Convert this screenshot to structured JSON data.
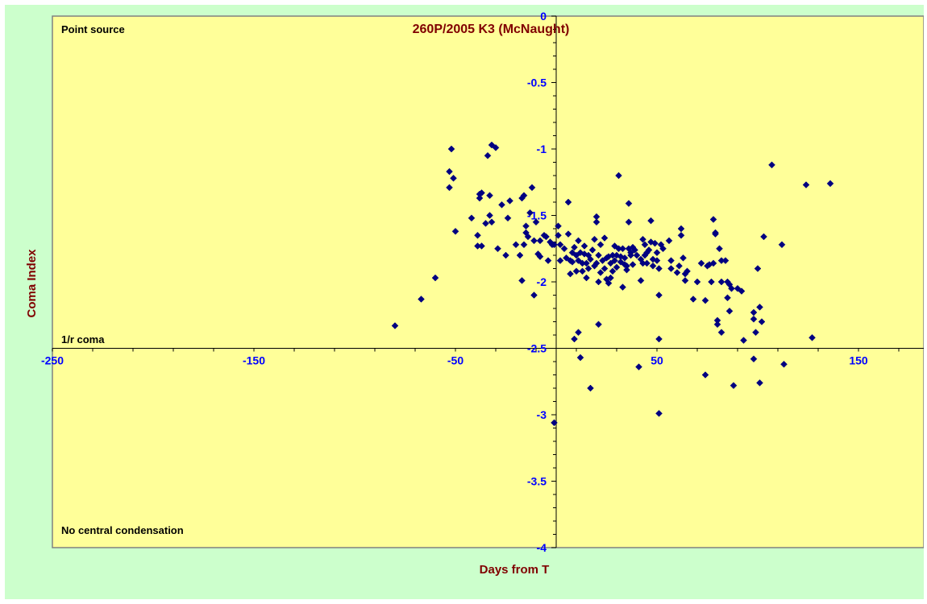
{
  "chart_data": {
    "type": "scatter",
    "title": "260P/2005 K3 (McNaught)",
    "xlabel": "Days from  T",
    "ylabel": "Coma Index",
    "xlim": [
      -250,
      200
    ],
    "ylim": [
      -4,
      0
    ],
    "x_ticks": [
      -250,
      -150,
      -50,
      50,
      150
    ],
    "y_ticks": [
      0,
      -0.5,
      -1,
      -1.5,
      -2,
      -2.5,
      -3,
      -3.5,
      -4
    ],
    "x_tick_labels": [
      "-250",
      "-150",
      "-50",
      "50",
      "150"
    ],
    "y_tick_labels": [
      "0",
      "-0.5",
      "-1",
      "-1.5",
      "-2",
      "-2.5",
      "-3",
      "-3.5",
      "-4"
    ],
    "grid": false,
    "annotations": {
      "top": "Point source",
      "middle": "1/r coma",
      "bottom": "No central condensation"
    },
    "colors": {
      "plot_background": "#ffff99",
      "outer_background": "#ccffcc",
      "marker": "#000080",
      "tick_label": "#0000ff",
      "title": "#800000"
    },
    "points": [
      [
        -80,
        -2.33
      ],
      [
        -67,
        -2.13
      ],
      [
        -60,
        -1.97
      ],
      [
        -53,
        -1.17
      ],
      [
        -53,
        -1.29
      ],
      [
        -52,
        -1.0
      ],
      [
        -51,
        -1.22
      ],
      [
        -50,
        -1.62
      ],
      [
        -42,
        -1.52
      ],
      [
        -39,
        -1.65
      ],
      [
        -39,
        -1.73
      ],
      [
        -38,
        -1.34
      ],
      [
        -38,
        -1.37
      ],
      [
        -37,
        -1.33
      ],
      [
        -37,
        -1.73
      ],
      [
        -35,
        -1.56
      ],
      [
        -34,
        -1.05
      ],
      [
        -33,
        -1.35
      ],
      [
        -33,
        -1.5
      ],
      [
        -32,
        -0.97
      ],
      [
        -32,
        -1.55
      ],
      [
        -30,
        -0.99
      ],
      [
        -29,
        -1.75
      ],
      [
        -27,
        -1.42
      ],
      [
        -25,
        -1.8
      ],
      [
        -24,
        -1.52
      ],
      [
        -23,
        -1.39
      ],
      [
        -20,
        -1.72
      ],
      [
        -18,
        -1.8
      ],
      [
        -17,
        -1.37
      ],
      [
        -17,
        -1.99
      ],
      [
        -16,
        -1.35
      ],
      [
        -16,
        -1.72
      ],
      [
        -15,
        -1.58
      ],
      [
        -15,
        -1.63
      ],
      [
        -14,
        -1.66
      ],
      [
        -13,
        -1.48
      ],
      [
        -12,
        -1.29
      ],
      [
        -11,
        -1.69
      ],
      [
        -11,
        -2.1
      ],
      [
        -10,
        -1.55
      ],
      [
        -9,
        -1.79
      ],
      [
        -8,
        -1.69
      ],
      [
        -8,
        -1.81
      ],
      [
        -6,
        -1.65
      ],
      [
        -5,
        -1.66
      ],
      [
        -4,
        -1.84
      ],
      [
        -3,
        -1.7
      ],
      [
        -2,
        -1.72
      ],
      [
        -1,
        -1.72
      ],
      [
        -1,
        -3.06
      ],
      [
        1,
        -1.58
      ],
      [
        1,
        -1.65
      ],
      [
        2,
        -1.72
      ],
      [
        2,
        -1.84
      ],
      [
        4,
        -1.75
      ],
      [
        5,
        -1.82
      ],
      [
        6,
        -1.4
      ],
      [
        6,
        -1.64
      ],
      [
        7,
        -1.84
      ],
      [
        7,
        -1.94
      ],
      [
        8,
        -1.78
      ],
      [
        8,
        -1.85
      ],
      [
        9,
        -1.74
      ],
      [
        9,
        -2.43
      ],
      [
        10,
        -1.8
      ],
      [
        10,
        -1.92
      ],
      [
        11,
        -1.69
      ],
      [
        11,
        -1.84
      ],
      [
        11,
        -2.38
      ],
      [
        12,
        -1.78
      ],
      [
        12,
        -2.57
      ],
      [
        13,
        -1.86
      ],
      [
        13,
        -1.92
      ],
      [
        14,
        -1.73
      ],
      [
        14,
        -1.79
      ],
      [
        15,
        -1.86
      ],
      [
        15,
        -1.97
      ],
      [
        16,
        -1.8
      ],
      [
        16,
        -1.9
      ],
      [
        17,
        -1.83
      ],
      [
        17,
        -2.8
      ],
      [
        18,
        -1.76
      ],
      [
        19,
        -1.68
      ],
      [
        19,
        -1.88
      ],
      [
        20,
        -1.51
      ],
      [
        20,
        -1.55
      ],
      [
        20,
        -1.86
      ],
      [
        21,
        -1.8
      ],
      [
        21,
        -2.0
      ],
      [
        21,
        -2.32
      ],
      [
        22,
        -1.72
      ],
      [
        22,
        -1.93
      ],
      [
        23,
        -1.84
      ],
      [
        24,
        -1.67
      ],
      [
        24,
        -1.9
      ],
      [
        25,
        -1.82
      ],
      [
        25,
        -1.98
      ],
      [
        26,
        -1.81
      ],
      [
        26,
        -2.01
      ],
      [
        27,
        -1.86
      ],
      [
        27,
        -1.97
      ],
      [
        28,
        -1.8
      ],
      [
        28,
        -1.92
      ],
      [
        29,
        -1.73
      ],
      [
        29,
        -1.84
      ],
      [
        30,
        -1.8
      ],
      [
        30,
        -1.89
      ],
      [
        31,
        -1.2
      ],
      [
        31,
        -1.75
      ],
      [
        32,
        -1.81
      ],
      [
        32,
        -1.85
      ],
      [
        33,
        -1.75
      ],
      [
        33,
        -2.04
      ],
      [
        34,
        -1.82
      ],
      [
        34,
        -1.87
      ],
      [
        35,
        -1.88
      ],
      [
        35,
        -1.91
      ],
      [
        36,
        -1.41
      ],
      [
        36,
        -1.55
      ],
      [
        36,
        -1.75
      ],
      [
        37,
        -1.78
      ],
      [
        37,
        -1.8
      ],
      [
        38,
        -1.74
      ],
      [
        38,
        -1.87
      ],
      [
        39,
        -1.76
      ],
      [
        40,
        -1.8
      ],
      [
        41,
        -2.64
      ],
      [
        42,
        -1.83
      ],
      [
        42,
        -1.99
      ],
      [
        43,
        -1.68
      ],
      [
        43,
        -1.86
      ],
      [
        44,
        -1.72
      ],
      [
        44,
        -1.8
      ],
      [
        45,
        -1.78
      ],
      [
        45,
        -1.86
      ],
      [
        46,
        -1.76
      ],
      [
        47,
        -1.54
      ],
      [
        47,
        -1.7
      ],
      [
        48,
        -1.83
      ],
      [
        48,
        -1.88
      ],
      [
        49,
        -1.71
      ],
      [
        50,
        -1.78
      ],
      [
        50,
        -1.84
      ],
      [
        51,
        -1.9
      ],
      [
        51,
        -2.1
      ],
      [
        51,
        -2.43
      ],
      [
        51,
        -2.99
      ],
      [
        52,
        -1.72
      ],
      [
        53,
        -1.75
      ],
      [
        56,
        -1.69
      ],
      [
        57,
        -1.84
      ],
      [
        57,
        -1.9
      ],
      [
        60,
        -1.93
      ],
      [
        61,
        -1.88
      ],
      [
        62,
        -1.6
      ],
      [
        62,
        -1.65
      ],
      [
        63,
        -1.82
      ],
      [
        64,
        -1.94
      ],
      [
        64,
        -1.99
      ],
      [
        65,
        -1.92
      ],
      [
        68,
        -2.13
      ],
      [
        70,
        -2.0
      ],
      [
        72,
        -1.86
      ],
      [
        74,
        -2.14
      ],
      [
        74,
        -2.7
      ],
      [
        75,
        -1.88
      ],
      [
        76,
        -1.87
      ],
      [
        77,
        -2.0
      ],
      [
        78,
        -1.53
      ],
      [
        78,
        -1.86
      ],
      [
        79,
        -1.63
      ],
      [
        79,
        -1.64
      ],
      [
        80,
        -2.29
      ],
      [
        80,
        -2.32
      ],
      [
        81,
        -1.75
      ],
      [
        82,
        -2.0
      ],
      [
        82,
        -2.38
      ],
      [
        82,
        -1.84
      ],
      [
        84,
        -1.84
      ],
      [
        85,
        -2.0
      ],
      [
        85,
        -2.12
      ],
      [
        86,
        -2.22
      ],
      [
        86,
        -2.02
      ],
      [
        87,
        -2.05
      ],
      [
        88,
        -2.78
      ],
      [
        90,
        -2.05
      ],
      [
        92,
        -2.07
      ],
      [
        93,
        -2.44
      ],
      [
        98,
        -2.23
      ],
      [
        98,
        -2.28
      ],
      [
        98,
        -2.58
      ],
      [
        99,
        -2.38
      ],
      [
        100,
        -1.9
      ],
      [
        101,
        -2.19
      ],
      [
        101,
        -2.76
      ],
      [
        102,
        -2.3
      ],
      [
        103,
        -1.66
      ],
      [
        107,
        -1.12
      ],
      [
        112,
        -1.72
      ],
      [
        113,
        -2.62
      ],
      [
        124,
        -1.27
      ],
      [
        127,
        -2.42
      ],
      [
        136,
        -1.26
      ]
    ]
  }
}
